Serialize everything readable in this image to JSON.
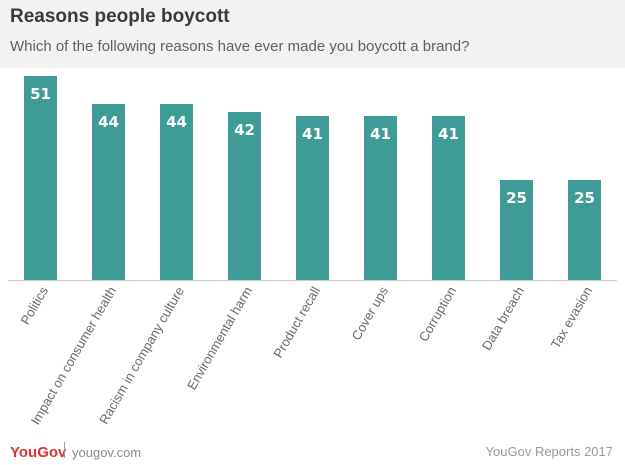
{
  "header": {
    "title": "Reasons people boycott",
    "subtitle": "Which of the following reasons have ever made you boycott a brand?"
  },
  "footer": {
    "logo": "YouGov",
    "site": "yougov.com",
    "credit": "YouGov Reports 2017"
  },
  "colors": {
    "bar": "#3f9b96",
    "baseline": "#cccccc",
    "label": "#ffffff"
  },
  "chart_data": {
    "type": "bar",
    "title": "Reasons people boycott",
    "subtitle": "Which of the following reasons have ever made you boycott a brand?",
    "categories": [
      "Politics",
      "Impact on consumer health",
      "Racism in company culture",
      "Environmental harm",
      "Product recall",
      "Cover ups",
      "Corruption",
      "Data breach",
      "Tax evasion"
    ],
    "values": [
      51,
      44,
      44,
      42,
      41,
      41,
      41,
      25,
      25
    ],
    "ylim": [
      0,
      51
    ],
    "grid": false,
    "data_labels": true
  }
}
